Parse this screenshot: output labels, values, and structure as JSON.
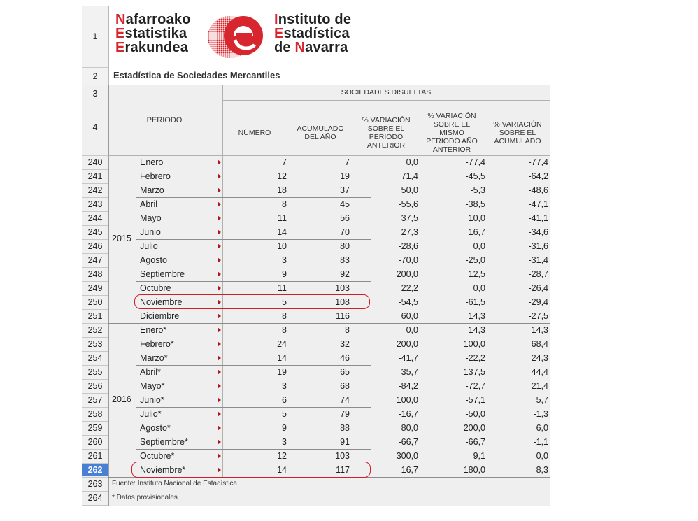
{
  "header": {
    "row1": "1",
    "row2": "2",
    "row3": "3",
    "row4": "4",
    "logo_left": [
      {
        "first": "N",
        "rest": "afarroako"
      },
      {
        "first": "E",
        "rest": "statistika"
      },
      {
        "first": "E",
        "rest": "rakundea"
      }
    ],
    "logo_right": [
      {
        "first": "I",
        "rest": "nstituto de"
      },
      {
        "first": "E",
        "rest": "stadística"
      },
      {
        "first": "de ",
        "mid": "N",
        "rest": "avarra"
      }
    ],
    "logo_icon": "nastat-e-logo",
    "subtitle": "Estadística de Sociedades Mercantiles"
  },
  "table": {
    "group_header": "SOCIEDADES DISUELTAS",
    "periodo_header": "PERIODO",
    "columns": [
      [
        "NÚMERO"
      ],
      [
        "ACUMULADO",
        "DEL AÑO"
      ],
      [
        "% VARIACIÓN",
        "SOBRE EL",
        "PERIODO",
        "ANTERIOR"
      ],
      [
        "% VARIACIÓN",
        "SOBRE EL",
        "MISMO",
        "PERIODO AÑO",
        "ANTERIOR"
      ],
      [
        "% VARIACIÓN",
        "SOBRE EL",
        "ACUMULADO"
      ]
    ],
    "years": [
      {
        "label": "2015",
        "first_row": 0,
        "last_row": 11
      },
      {
        "label": "2016",
        "first_row": 12,
        "last_row": 22
      }
    ],
    "rows": [
      {
        "n": "240",
        "month": "Enero",
        "v": [
          "7",
          "7",
          "0,0",
          "-77,4",
          "-77,4"
        ]
      },
      {
        "n": "241",
        "month": "Febrero",
        "v": [
          "12",
          "19",
          "71,4",
          "-45,5",
          "-64,2"
        ]
      },
      {
        "n": "242",
        "month": "Marzo",
        "v": [
          "18",
          "37",
          "50,0",
          "-5,3",
          "-48,6"
        ]
      },
      {
        "n": "243",
        "month": "Abril",
        "v": [
          "8",
          "45",
          "-55,6",
          "-38,5",
          "-47,1"
        ]
      },
      {
        "n": "244",
        "month": "Mayo",
        "v": [
          "11",
          "56",
          "37,5",
          "10,0",
          "-41,1"
        ]
      },
      {
        "n": "245",
        "month": "Junio",
        "v": [
          "14",
          "70",
          "27,3",
          "16,7",
          "-34,6"
        ]
      },
      {
        "n": "246",
        "month": "Julio",
        "v": [
          "10",
          "80",
          "-28,6",
          "0,0",
          "-31,6"
        ]
      },
      {
        "n": "247",
        "month": "Agosto",
        "v": [
          "3",
          "83",
          "-70,0",
          "-25,0",
          "-31,4"
        ]
      },
      {
        "n": "248",
        "month": "Septiembre",
        "v": [
          "9",
          "92",
          "200,0",
          "12,5",
          "-28,7"
        ]
      },
      {
        "n": "249",
        "month": "Octubre",
        "v": [
          "11",
          "103",
          "22,2",
          "0,0",
          "-26,4"
        ]
      },
      {
        "n": "250",
        "month": "Noviembre",
        "v": [
          "5",
          "108",
          "-54,5",
          "-61,5",
          "-29,4"
        ]
      },
      {
        "n": "251",
        "month": "Diciembre",
        "v": [
          "8",
          "116",
          "60,0",
          "14,3",
          "-27,5"
        ]
      },
      {
        "n": "252",
        "month": "Enero*",
        "v": [
          "8",
          "8",
          "0,0",
          "14,3",
          "14,3"
        ]
      },
      {
        "n": "253",
        "month": "Febrero*",
        "v": [
          "24",
          "32",
          "200,0",
          "100,0",
          "68,4"
        ]
      },
      {
        "n": "254",
        "month": "Marzo*",
        "v": [
          "14",
          "46",
          "-41,7",
          "-22,2",
          "24,3"
        ]
      },
      {
        "n": "255",
        "month": "Abril*",
        "v": [
          "19",
          "65",
          "35,7",
          "137,5",
          "44,4"
        ]
      },
      {
        "n": "256",
        "month": "Mayo*",
        "v": [
          "3",
          "68",
          "-84,2",
          "-72,7",
          "21,4"
        ]
      },
      {
        "n": "257",
        "month": "Junio*",
        "v": [
          "6",
          "74",
          "100,0",
          "-57,1",
          "5,7"
        ]
      },
      {
        "n": "258",
        "month": "Julio*",
        "v": [
          "5",
          "79",
          "-16,7",
          "-50,0",
          "-1,3"
        ]
      },
      {
        "n": "259",
        "month": "Agosto*",
        "v": [
          "9",
          "88",
          "80,0",
          "200,0",
          "6,0"
        ]
      },
      {
        "n": "260",
        "month": "Septiembre*",
        "v": [
          "3",
          "91",
          "-66,7",
          "-66,7",
          "-1,1"
        ]
      },
      {
        "n": "261",
        "month": "Octubre*",
        "v": [
          "12",
          "103",
          "300,0",
          "9,1",
          "0,0"
        ]
      },
      {
        "n": "262",
        "month": "Noviembre*",
        "v": [
          "14",
          "117",
          "16,7",
          "180,0",
          "8,3"
        ]
      }
    ],
    "selected_row": "262",
    "footer": [
      {
        "n": "263",
        "text": "Fuente: Instituto Nacional de Estadística"
      },
      {
        "n": "264",
        "text": "* Datos provisionales"
      }
    ]
  },
  "colors": {
    "brand_red": "#d7262e",
    "highlight_red": "#d11f2a",
    "selected_row_bg": "#4a7fd6",
    "grid_bg": "#efefef"
  }
}
